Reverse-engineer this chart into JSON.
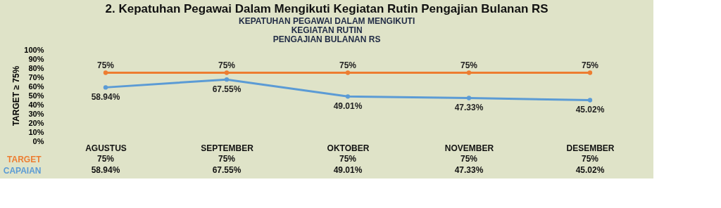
{
  "chart_data": {
    "type": "line",
    "title": "2. Kepatuhan Pegawai Dalam Mengikuti Kegiatan Rutin Pengajian Bulanan RS",
    "subtitle": "KEPATUHAN PEGAWAI DALAM MENGIKUTI\nKEGIATAN RUTIN\nPENGAJIAN BULANAN RS",
    "ylabel": "TARGET ≥ 75%",
    "categories": [
      "AGUSTUS",
      "SEPTEMBER",
      "OKTOBER",
      "NOVEMBER",
      "DESEMBER"
    ],
    "series": [
      {
        "name": "TARGET",
        "color": "#ed7d31",
        "values": [
          75,
          75,
          75,
          75,
          75
        ]
      },
      {
        "name": "CAPAIAN",
        "color": "#5b9bd5",
        "values": [
          58.94,
          67.55,
          49.01,
          47.33,
          45.02
        ]
      }
    ],
    "ylim": [
      0,
      100
    ],
    "yticks": [
      {
        "value": 0,
        "label": "0%"
      },
      {
        "value": 10,
        "label": "10%"
      },
      {
        "value": 20,
        "label": "20%"
      },
      {
        "value": 30,
        "label": "30%"
      },
      {
        "value": 40,
        "label": "40%"
      },
      {
        "value": 50,
        "label": "50%"
      },
      {
        "value": 60,
        "label": "60%"
      },
      {
        "value": 70,
        "label": "70%"
      },
      {
        "value": 80,
        "label": "80%"
      },
      {
        "value": 90,
        "label": "90%"
      },
      {
        "value": 100,
        "label": "100%"
      }
    ],
    "value_labels": [
      [
        "75%",
        "75%",
        "75%",
        "75%",
        "75%"
      ],
      [
        "58.94%",
        "67.55%",
        "49.01%",
        "47.33%",
        "45.02%"
      ]
    ],
    "marker": "circle",
    "line_style": "solid",
    "grid": false,
    "legend": "bottom left"
  }
}
